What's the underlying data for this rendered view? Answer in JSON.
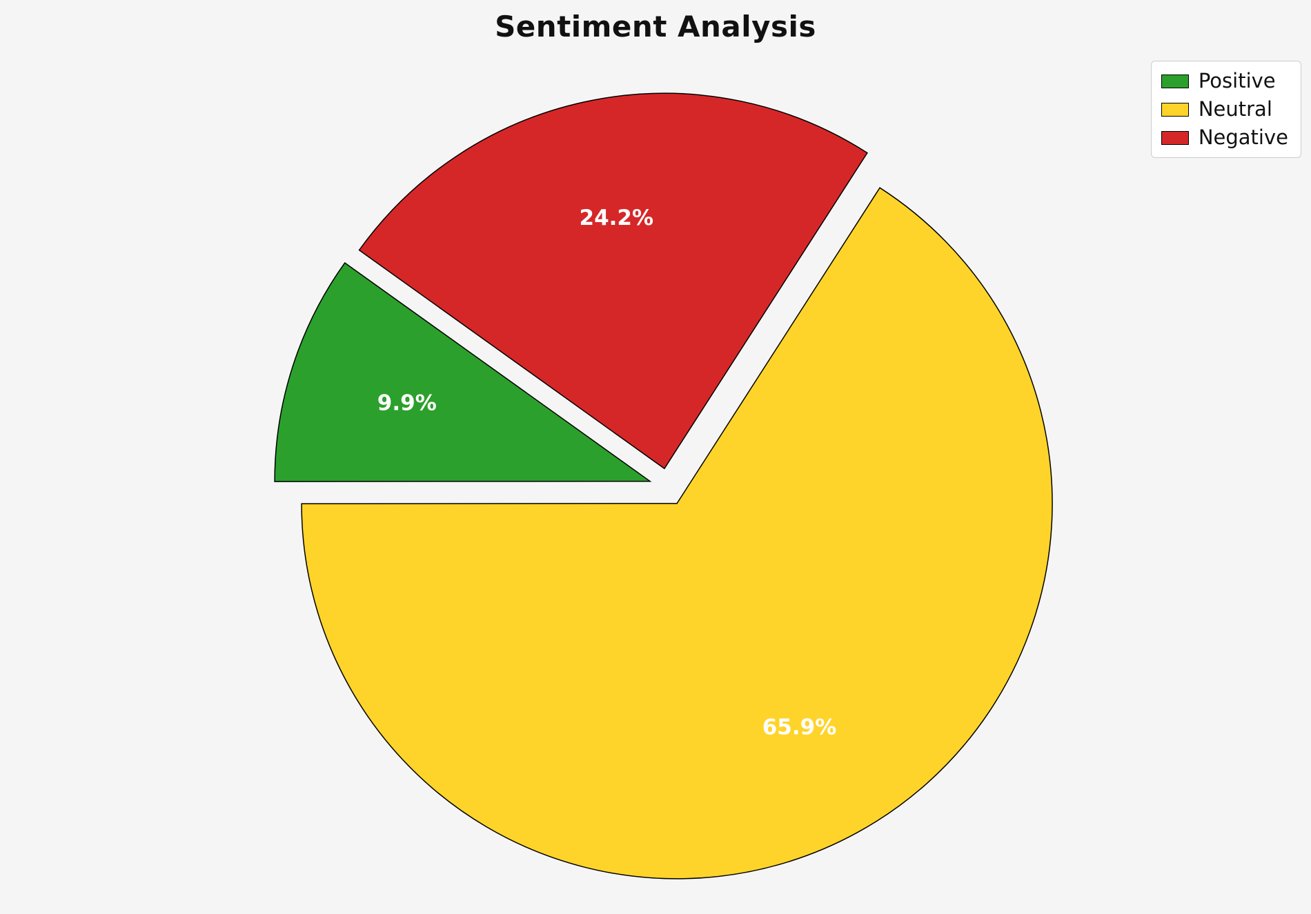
{
  "page": {
    "background_color": "#f5f5f5"
  },
  "chart_data": {
    "type": "pie",
    "title": "Sentiment Analysis",
    "slices": [
      {
        "label": "Positive",
        "value": 9.9,
        "pct_label": "9.9%",
        "color": "#2ca02c",
        "explode": 0.05
      },
      {
        "label": "Neutral",
        "value": 65.9,
        "pct_label": "65.9%",
        "color": "#ffd42a",
        "explode": 0.05
      },
      {
        "label": "Negative",
        "value": 24.2,
        "pct_label": "24.2%",
        "color": "#d62728",
        "explode": 0.05
      }
    ],
    "start_angle": 144.4,
    "counterclockwise": true,
    "pct_distance": 0.68,
    "pct_label_color": "#ffffff",
    "edge_color": "#000000",
    "legend_position": "upper right",
    "legend_entries": [
      "Positive",
      "Neutral",
      "Negative"
    ]
  }
}
